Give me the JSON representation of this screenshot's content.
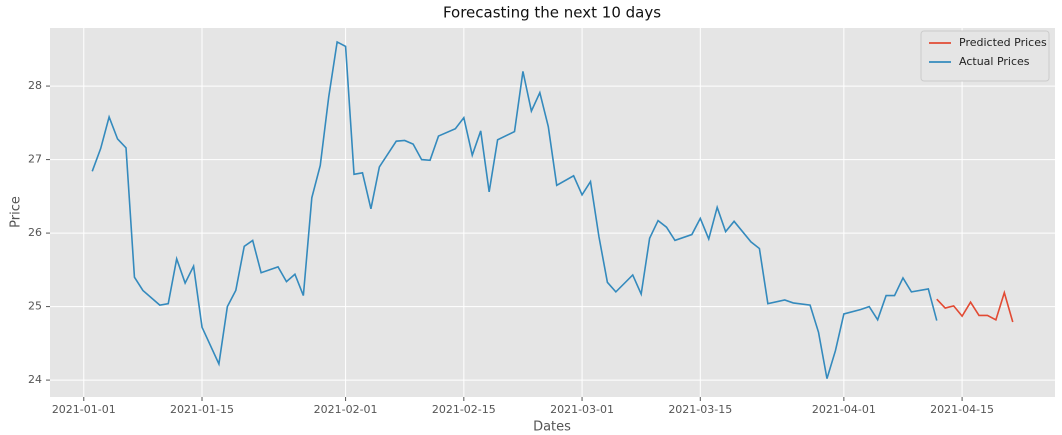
{
  "chart_data": {
    "type": "line",
    "title": "Forecasting the next 10 days",
    "x_label": "Dates",
    "y_label": "Price",
    "series": [
      {
        "name": "Predicted Prices",
        "color": "#e24a33",
        "x": [
          "2021-04-12",
          "2021-04-13",
          "2021-04-14",
          "2021-04-15",
          "2021-04-16",
          "2021-04-17",
          "2021-04-18",
          "2021-04-19",
          "2021-04-20",
          "2021-04-21"
        ],
        "values": [
          25.1,
          24.98,
          25.01,
          24.87,
          25.06,
          24.88,
          24.88,
          24.82,
          25.19,
          24.79
        ]
      },
      {
        "name": "Actual Prices",
        "color": "#348abd",
        "x": [
          "2021-01-02",
          "2021-01-03",
          "2021-01-04",
          "2021-01-05",
          "2021-01-06",
          "2021-01-07",
          "2021-01-08",
          "2021-01-10",
          "2021-01-11",
          "2021-01-12",
          "2021-01-13",
          "2021-01-14",
          "2021-01-15",
          "2021-01-17",
          "2021-01-18",
          "2021-01-19",
          "2021-01-20",
          "2021-01-21",
          "2021-01-22",
          "2021-01-24",
          "2021-01-25",
          "2021-01-26",
          "2021-01-27",
          "2021-01-28",
          "2021-01-29",
          "2021-01-30",
          "2021-01-31",
          "2021-02-01",
          "2021-02-02",
          "2021-02-03",
          "2021-02-04",
          "2021-02-05",
          "2021-02-07",
          "2021-02-08",
          "2021-02-09",
          "2021-02-10",
          "2021-02-11",
          "2021-02-12",
          "2021-02-14",
          "2021-02-15",
          "2021-02-16",
          "2021-02-17",
          "2021-02-18",
          "2021-02-19",
          "2021-02-21",
          "2021-02-22",
          "2021-02-23",
          "2021-02-24",
          "2021-02-25",
          "2021-02-26",
          "2021-02-28",
          "2021-03-01",
          "2021-03-02",
          "2021-03-03",
          "2021-03-04",
          "2021-03-05",
          "2021-03-07",
          "2021-03-08",
          "2021-03-09",
          "2021-03-10",
          "2021-03-11",
          "2021-03-12",
          "2021-03-14",
          "2021-03-15",
          "2021-03-16",
          "2021-03-17",
          "2021-03-18",
          "2021-03-19",
          "2021-03-21",
          "2021-03-22",
          "2021-03-23",
          "2021-03-25",
          "2021-03-26",
          "2021-03-28",
          "2021-03-29",
          "2021-03-30",
          "2021-03-31",
          "2021-04-01",
          "2021-04-03",
          "2021-04-04",
          "2021-04-05",
          "2021-04-06",
          "2021-04-07",
          "2021-04-08",
          "2021-04-09",
          "2021-04-11",
          "2021-04-12"
        ],
        "values": [
          26.84,
          27.15,
          27.58,
          27.28,
          27.16,
          25.4,
          25.22,
          25.02,
          25.04,
          25.65,
          25.32,
          25.55,
          24.72,
          24.22,
          25.0,
          25.22,
          25.82,
          25.9,
          25.46,
          25.54,
          25.34,
          25.44,
          25.15,
          26.48,
          26.92,
          27.85,
          28.6,
          28.54,
          26.8,
          26.82,
          26.33,
          26.9,
          27.25,
          27.26,
          27.21,
          27.0,
          26.99,
          27.32,
          27.42,
          27.57,
          27.06,
          27.39,
          26.56,
          27.27,
          27.38,
          28.2,
          27.66,
          27.91,
          27.45,
          26.65,
          26.78,
          26.52,
          26.7,
          25.95,
          25.33,
          25.2,
          25.43,
          25.17,
          25.93,
          26.17,
          26.08,
          25.9,
          25.98,
          26.2,
          25.92,
          26.35,
          26.02,
          26.16,
          25.88,
          25.79,
          25.04,
          25.09,
          25.05,
          25.02,
          24.65,
          24.02,
          24.4,
          24.9,
          24.96,
          25.0,
          24.82,
          25.15,
          25.15,
          25.39,
          25.2,
          25.24,
          24.81
        ]
      }
    ],
    "xlim": [
      "2020-12-28",
      "2021-04-26"
    ],
    "xticks": [
      "2021-01-01",
      "2021-01-15",
      "2021-02-01",
      "2021-02-15",
      "2021-03-01",
      "2021-03-15",
      "2021-04-01",
      "2021-04-15"
    ],
    "ylim": [
      23.77,
      28.79
    ],
    "yticks": [
      24,
      25,
      26,
      27,
      28
    ],
    "grid": true,
    "legend": "upper right"
  }
}
